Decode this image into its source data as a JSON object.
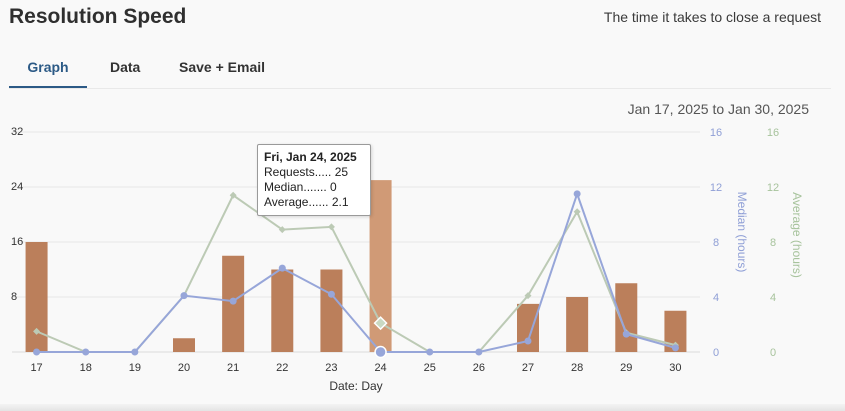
{
  "header": {
    "title": "Resolution Speed",
    "subtitle": "The time it takes to close a request"
  },
  "tabs": [
    {
      "label": "Graph",
      "active": true
    },
    {
      "label": "Data",
      "active": false
    },
    {
      "label": "Save + Email",
      "active": false
    }
  ],
  "date_range": "Jan 17, 2025 to Jan 30, 2025",
  "tooltip": {
    "title": "Fri, Jan 24, 2025",
    "requests": "Requests..... 25",
    "median": "Median....... 0",
    "average": "Average...... 2.1"
  },
  "chart_data": {
    "type": "bar",
    "title": "",
    "xlabel": "Date: Day",
    "categories": [
      "17",
      "18",
      "19",
      "20",
      "21",
      "22",
      "23",
      "24",
      "25",
      "26",
      "27",
      "28",
      "29",
      "30"
    ],
    "yaxes": {
      "left": {
        "label": "",
        "ylim": [
          0,
          32
        ],
        "ticks": [
          8,
          16,
          24,
          32
        ]
      },
      "median": {
        "label": "Median (hours)",
        "ylim": [
          0,
          16
        ],
        "ticks": [
          0,
          4,
          8,
          12,
          16
        ],
        "color": "#8f9fd6"
      },
      "average": {
        "label": "Average (hours)",
        "ylim": [
          0,
          16
        ],
        "ticks": [
          0,
          4,
          8,
          12,
          16
        ],
        "color": "#a7c39c"
      }
    },
    "series": [
      {
        "name": "Requests",
        "type": "bar",
        "axis": "left",
        "color": "#bb7f5b",
        "highlight_color": "#d09a76",
        "values": [
          16,
          0,
          0,
          2,
          14,
          12,
          12,
          25,
          0,
          0,
          7,
          8,
          10,
          6
        ]
      },
      {
        "name": "Median",
        "type": "line",
        "axis": "median",
        "color": "#97a6d9",
        "values": [
          0,
          0,
          0,
          4.1,
          3.7,
          6.1,
          4.2,
          0,
          0,
          0,
          0.8,
          11.5,
          1.3,
          0.3
        ]
      },
      {
        "name": "Average",
        "type": "line",
        "axis": "average",
        "color": "#bccab5",
        "values": [
          1.5,
          0,
          0,
          4.1,
          11.4,
          8.9,
          9.1,
          2.1,
          0,
          0,
          4.1,
          10.2,
          1.4,
          0.5
        ]
      }
    ],
    "highlight_index": 7
  }
}
